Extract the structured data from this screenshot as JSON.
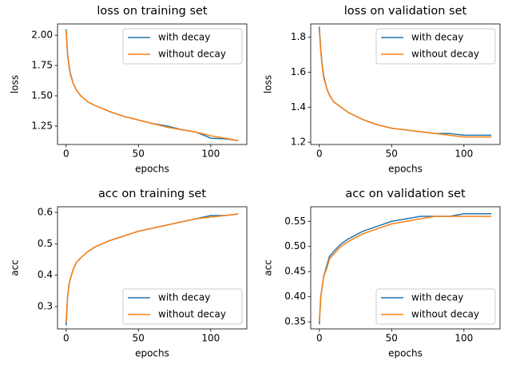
{
  "chart_data": [
    {
      "type": "line",
      "title": "loss on training set",
      "xlabel": "epochs",
      "ylabel": "loss",
      "legend": "upper right",
      "x": [
        0,
        1,
        2,
        3,
        5,
        7,
        10,
        15,
        20,
        30,
        40,
        50,
        60,
        70,
        80,
        90,
        100,
        110,
        119
      ],
      "xlim": [
        -5.95,
        124.95
      ],
      "xticks": [
        0,
        50,
        100
      ],
      "ylim": [
        1.098,
        2.093
      ],
      "yticks": [
        {
          "value": 1.25,
          "label": "1.25"
        },
        {
          "value": 1.5,
          "label": "1.50"
        },
        {
          "value": 1.75,
          "label": "1.75"
        },
        {
          "value": 2,
          "label": "2.00"
        }
      ],
      "series": [
        {
          "name": "with decay",
          "color": "#1f77b4",
          "values": [
            2.05,
            1.85,
            1.75,
            1.68,
            1.6,
            1.55,
            1.5,
            1.45,
            1.42,
            1.37,
            1.33,
            1.3,
            1.27,
            1.25,
            1.22,
            1.2,
            1.15,
            1.145,
            1.13
          ]
        },
        {
          "name": "without decay",
          "color": "#ff7f0e",
          "values": [
            2.04,
            1.84,
            1.74,
            1.67,
            1.6,
            1.55,
            1.5,
            1.45,
            1.42,
            1.37,
            1.33,
            1.3,
            1.27,
            1.24,
            1.22,
            1.2,
            1.17,
            1.15,
            1.13
          ]
        }
      ]
    },
    {
      "type": "line",
      "title": "loss on validation set",
      "xlabel": "epochs",
      "ylabel": "loss",
      "legend": "upper right",
      "x": [
        0,
        1,
        2,
        3,
        5,
        7,
        10,
        15,
        20,
        30,
        40,
        50,
        60,
        70,
        80,
        90,
        100,
        110,
        119
      ],
      "xlim": [
        -5.95,
        124.95
      ],
      "xticks": [
        0,
        50,
        100
      ],
      "ylim": [
        1.187,
        1.876
      ],
      "yticks": [
        1.2,
        1.4,
        1.6,
        1.8
      ],
      "series": [
        {
          "name": "with decay",
          "color": "#1f77b4",
          "values": [
            1.86,
            1.73,
            1.64,
            1.58,
            1.51,
            1.47,
            1.43,
            1.4,
            1.37,
            1.33,
            1.3,
            1.28,
            1.27,
            1.26,
            1.25,
            1.25,
            1.24,
            1.24,
            1.24
          ]
        },
        {
          "name": "without decay",
          "color": "#ff7f0e",
          "values": [
            1.84,
            1.72,
            1.63,
            1.57,
            1.51,
            1.47,
            1.43,
            1.4,
            1.37,
            1.33,
            1.3,
            1.28,
            1.27,
            1.26,
            1.25,
            1.24,
            1.23,
            1.23,
            1.23
          ]
        }
      ]
    },
    {
      "type": "line",
      "title": "acc on training set",
      "xlabel": "epochs",
      "ylabel": "acc",
      "legend": "lower right",
      "x": [
        0,
        1,
        2,
        3,
        5,
        7,
        10,
        15,
        20,
        30,
        40,
        50,
        60,
        70,
        80,
        90,
        100,
        110,
        119
      ],
      "xlim": [
        -5.95,
        124.95
      ],
      "xticks": [
        0,
        50,
        100
      ],
      "ylim": [
        0.229,
        0.618
      ],
      "yticks": [
        0.3,
        0.4,
        0.5,
        0.6
      ],
      "series": [
        {
          "name": "with decay",
          "color": "#1f77b4",
          "values": [
            0.24,
            0.33,
            0.37,
            0.39,
            0.42,
            0.44,
            0.455,
            0.475,
            0.49,
            0.51,
            0.525,
            0.54,
            0.55,
            0.56,
            0.57,
            0.58,
            0.59,
            0.59,
            0.595
          ]
        },
        {
          "name": "without decay",
          "color": "#ff7f0e",
          "values": [
            0.25,
            0.33,
            0.37,
            0.39,
            0.42,
            0.44,
            0.455,
            0.475,
            0.49,
            0.51,
            0.525,
            0.54,
            0.55,
            0.56,
            0.57,
            0.58,
            0.585,
            0.59,
            0.595
          ]
        }
      ]
    },
    {
      "type": "line",
      "title": "acc on validation set",
      "xlabel": "epochs",
      "ylabel": "acc",
      "legend": "lower right",
      "x": [
        0,
        1,
        2,
        3,
        5,
        7,
        10,
        15,
        20,
        30,
        40,
        50,
        60,
        70,
        80,
        90,
        100,
        110,
        119
      ],
      "xlim": [
        -5.95,
        124.95
      ],
      "xticks": [
        0,
        50,
        100
      ],
      "ylim": [
        0.336,
        0.579
      ],
      "yticks": [
        0.35,
        {
          "value": 0.4,
          "label": "0.40"
        },
        0.45,
        {
          "value": 0.5,
          "label": "0.50"
        },
        0.55
      ],
      "series": [
        {
          "name": "with decay",
          "color": "#1f77b4",
          "values": [
            0.345,
            0.4,
            0.42,
            0.44,
            0.46,
            0.48,
            0.49,
            0.505,
            0.515,
            0.53,
            0.54,
            0.55,
            0.555,
            0.56,
            0.56,
            0.56,
            0.565,
            0.565,
            0.565
          ]
        },
        {
          "name": "without decay",
          "color": "#ff7f0e",
          "values": [
            0.35,
            0.4,
            0.42,
            0.44,
            0.455,
            0.475,
            0.485,
            0.5,
            0.51,
            0.525,
            0.535,
            0.545,
            0.55,
            0.555,
            0.56,
            0.56,
            0.56,
            0.56,
            0.56
          ]
        }
      ]
    }
  ]
}
